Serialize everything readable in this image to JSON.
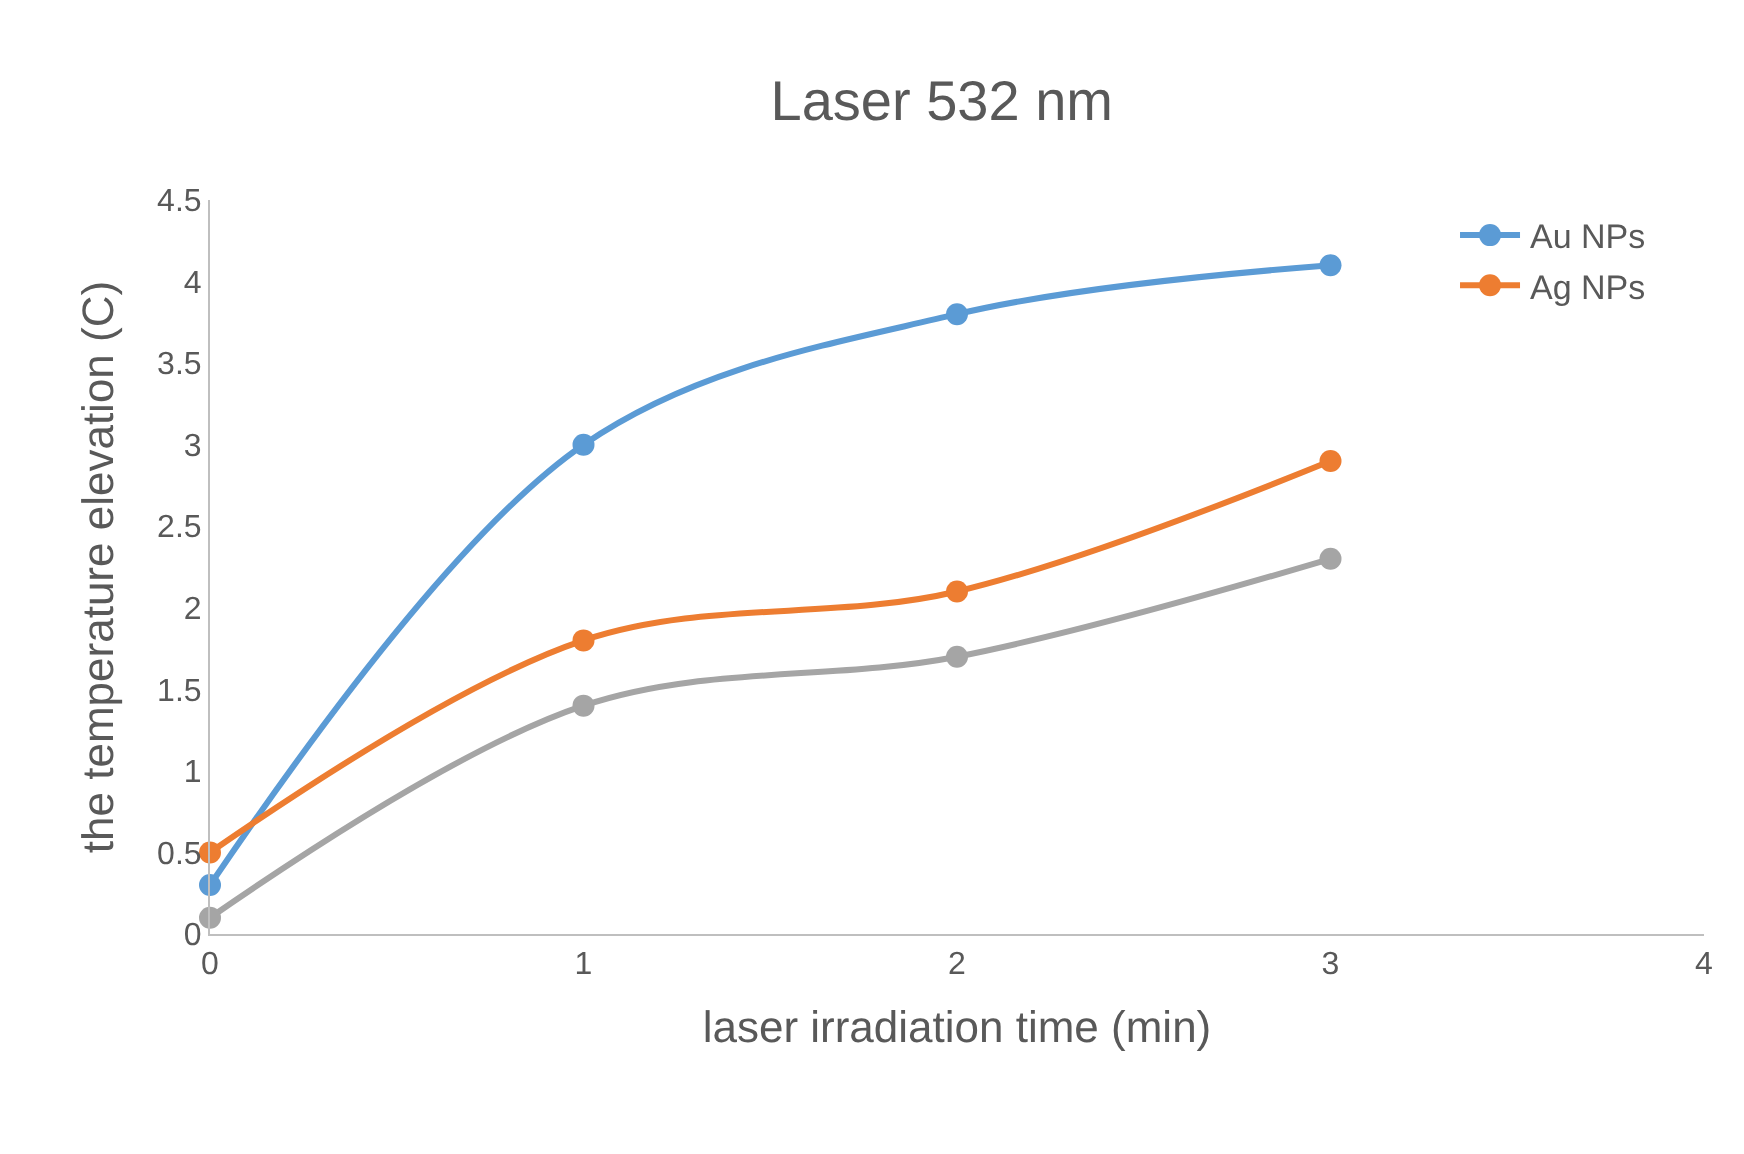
{
  "chart_data": {
    "type": "line",
    "title": "Laser 532 nm",
    "xlabel": "laser irradiation time (min)",
    "ylabel": "the temperature elevation (C)",
    "x": [
      0,
      1,
      2,
      3
    ],
    "series": [
      {
        "name": "Au NPs",
        "color": "#5b9bd5",
        "values": [
          0.3,
          3.0,
          3.8,
          4.1
        ]
      },
      {
        "name": "Ag NPs",
        "color": "#ed7d31",
        "values": [
          0.5,
          1.8,
          2.1,
          2.9
        ]
      },
      {
        "color": "#a5a5a5",
        "values": [
          0.1,
          1.4,
          1.7,
          2.3
        ]
      }
    ],
    "xlim": [
      0,
      4
    ],
    "xticks": [
      0,
      1,
      2,
      3,
      4
    ],
    "ylim": [
      0,
      4.5
    ],
    "yticks": [
      0,
      0.5,
      1,
      1.5,
      2,
      2.5,
      3,
      3.5,
      4,
      4.5
    ],
    "grid": false,
    "legend": "top right",
    "marker": "circle",
    "line_style": "solid"
  }
}
